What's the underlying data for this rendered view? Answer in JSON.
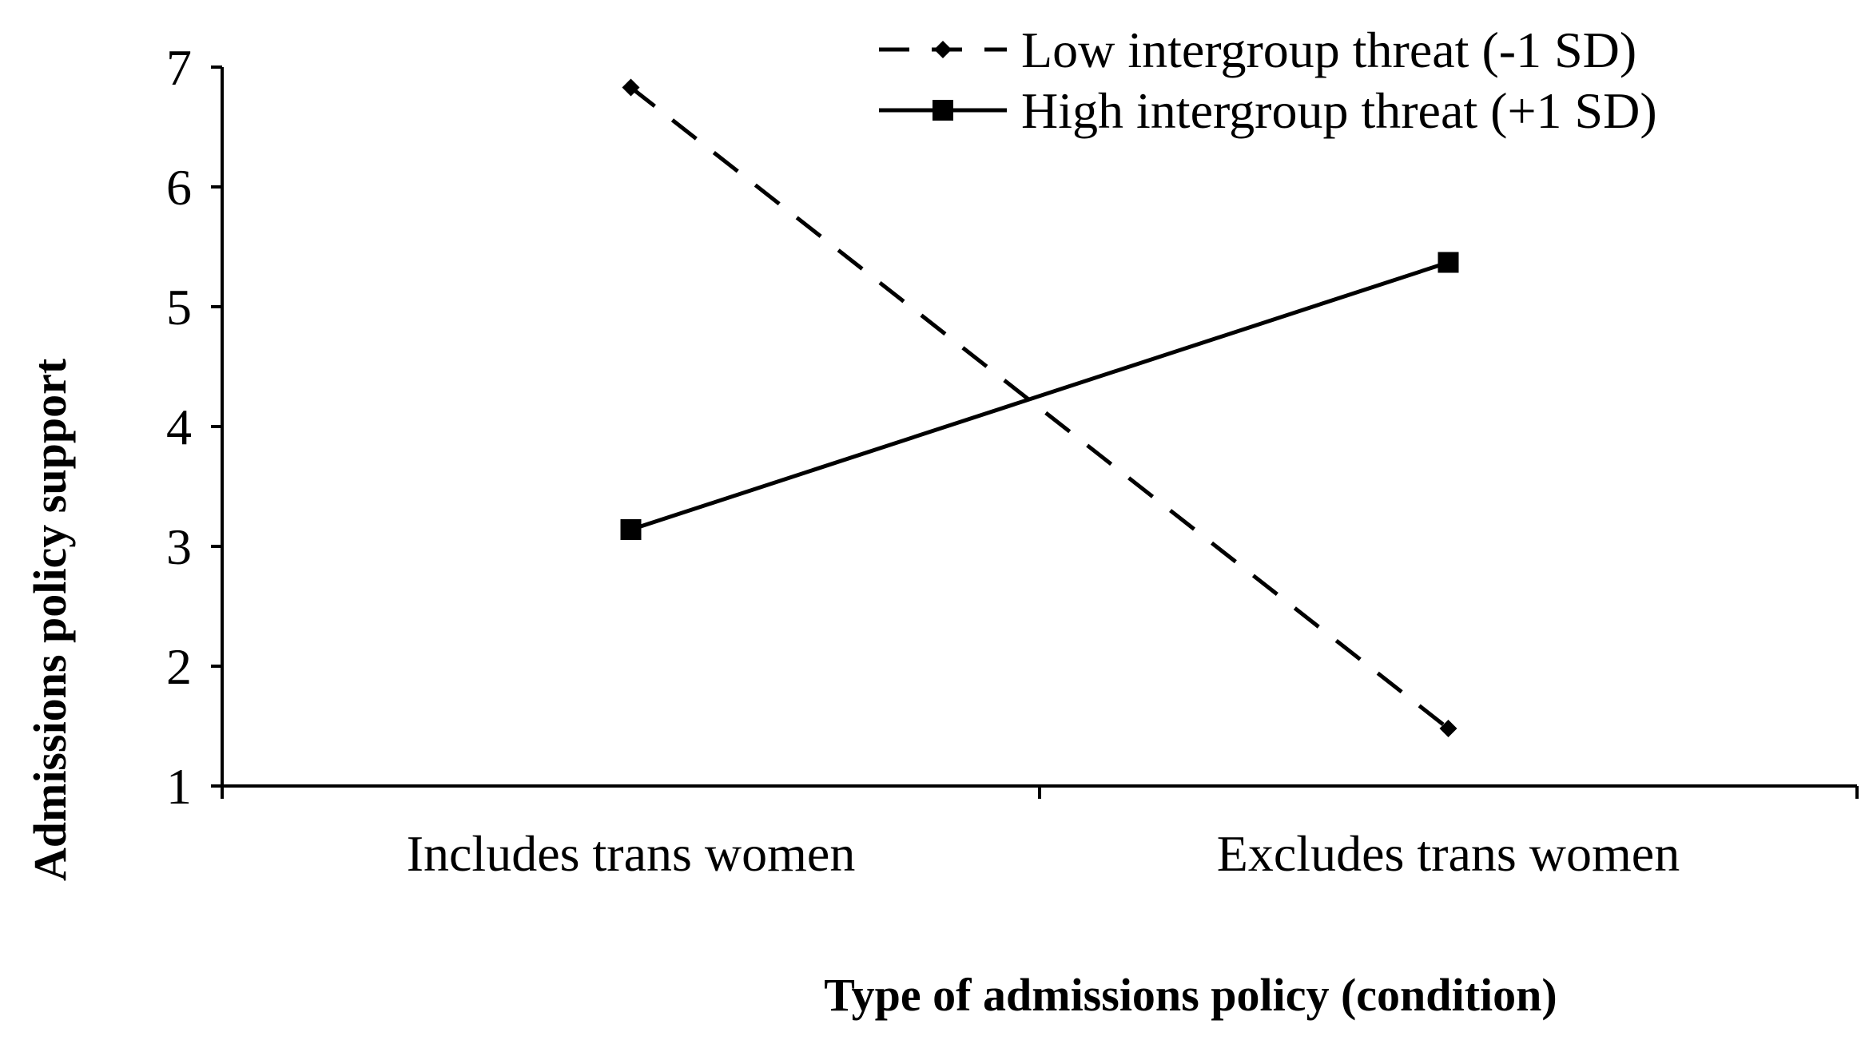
{
  "chart_data": {
    "type": "line",
    "categories": [
      "Includes trans women",
      "Excludes trans women"
    ],
    "series": [
      {
        "name": "Low intergroup threat (-1 SD)",
        "values": [
          6.83,
          1.48
        ],
        "line_style": "dashed",
        "marker": "diamond",
        "color": "#000000"
      },
      {
        "name": "High intergroup threat (+1 SD)",
        "values": [
          3.14,
          5.37
        ],
        "line_style": "solid",
        "marker": "square",
        "color": "#000000"
      }
    ],
    "title": "",
    "xlabel": "Type of admissions policy (condition)",
    "ylabel": "Admissions policy support",
    "ylim": [
      1,
      7
    ],
    "yticks": [
      1,
      2,
      3,
      4,
      5,
      6,
      7
    ],
    "grid": false,
    "legend_position": "top-right"
  }
}
